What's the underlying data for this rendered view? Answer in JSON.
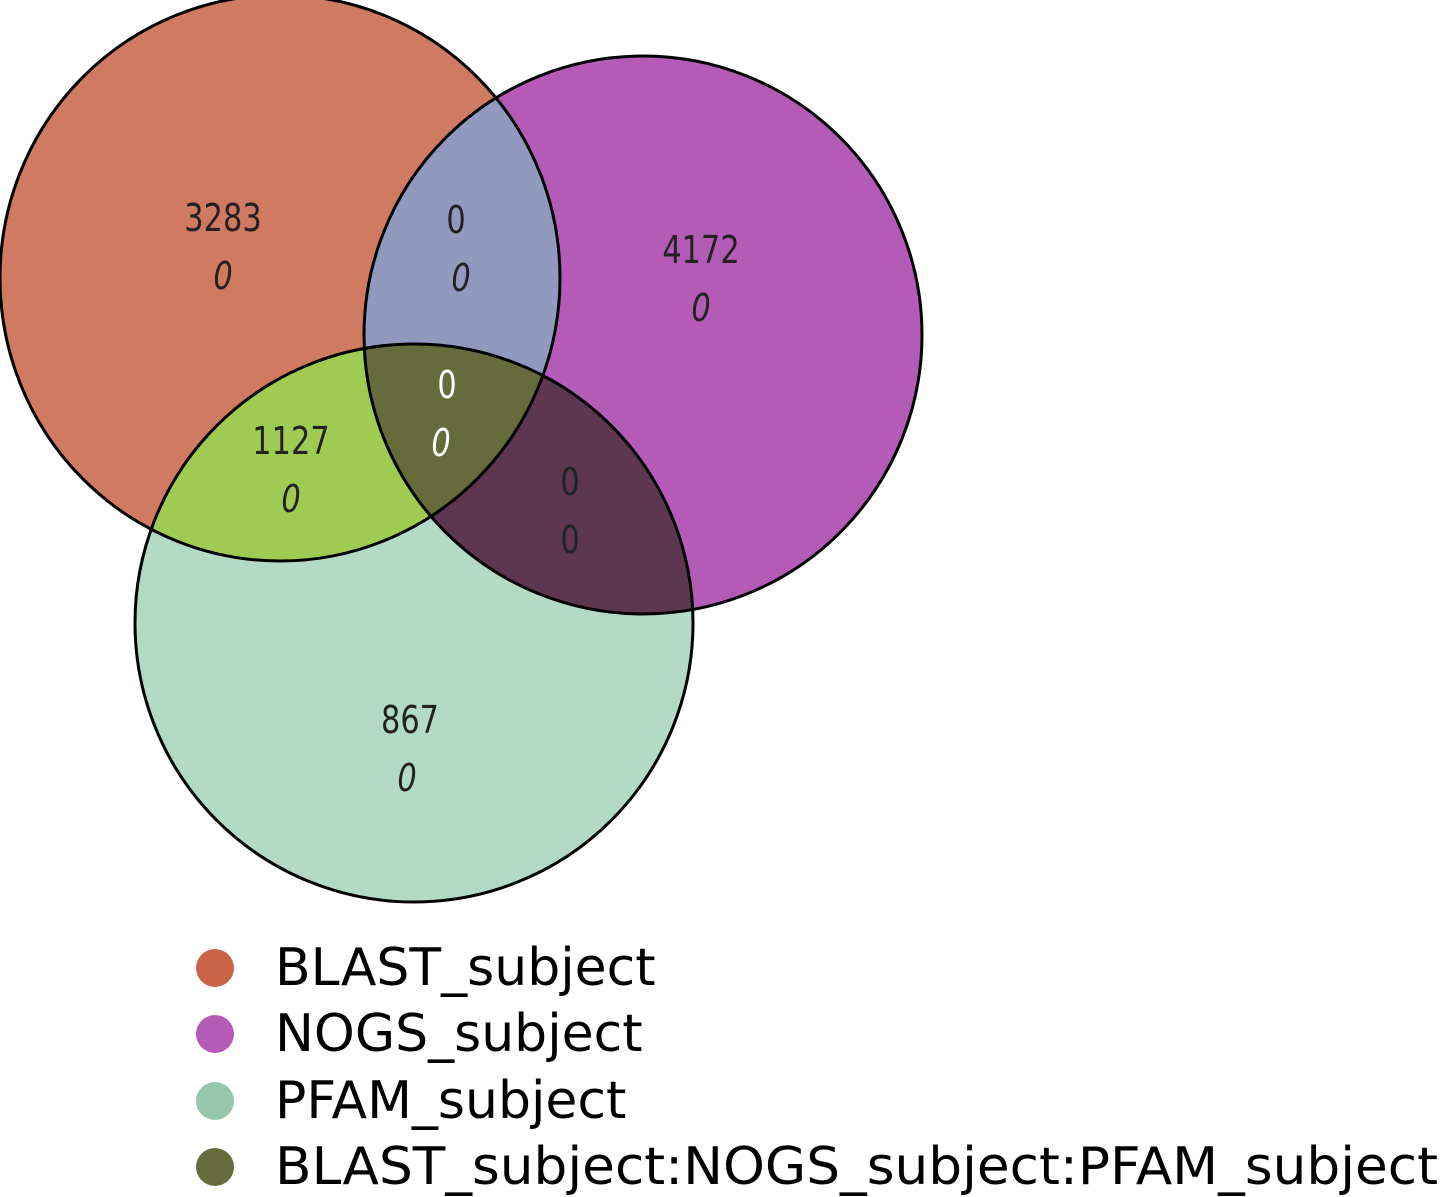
{
  "diagram": {
    "sets": [
      {
        "id": "A",
        "name": "BLAST_subject",
        "color": "#d07a62"
      },
      {
        "id": "B",
        "name": "NOGS_subject",
        "color": "#b45bb8"
      },
      {
        "id": "C",
        "name": "PFAM_subject",
        "color": "#b3dac7"
      }
    ],
    "region_colors": {
      "ab": "#9299be",
      "ac": "#a0cb52",
      "bc": "#5d3650",
      "abc": "#656b3b"
    },
    "regions": [
      {
        "id": "a_only",
        "sets": [
          "BLAST_subject"
        ],
        "value": "3283",
        "sub_value": "0"
      },
      {
        "id": "b_only",
        "sets": [
          "NOGS_subject"
        ],
        "value": "4172",
        "sub_value": "0"
      },
      {
        "id": "c_only",
        "sets": [
          "PFAM_subject"
        ],
        "value": "867",
        "sub_value": "0"
      },
      {
        "id": "ab",
        "sets": [
          "BLAST_subject",
          "NOGS_subject"
        ],
        "value": "0",
        "sub_value": "0"
      },
      {
        "id": "ac",
        "sets": [
          "BLAST_subject",
          "PFAM_subject"
        ],
        "value": "1127",
        "sub_value": "0"
      },
      {
        "id": "bc",
        "sets": [
          "NOGS_subject",
          "PFAM_subject"
        ],
        "value": "0",
        "sub_value": "0"
      },
      {
        "id": "abc",
        "sets": [
          "BLAST_subject",
          "NOGS_subject",
          "PFAM_subject"
        ],
        "value": "0",
        "sub_value": "0"
      }
    ],
    "legend": [
      {
        "label": "BLAST_subject",
        "color": "#c96449"
      },
      {
        "label": "NOGS_subject",
        "color": "#b45bb8"
      },
      {
        "label": "PFAM_subject",
        "color": "#96c7aa"
      },
      {
        "label": "BLAST_subject:NOGS_subject:PFAM_subject",
        "color": "#656b3b"
      }
    ]
  }
}
